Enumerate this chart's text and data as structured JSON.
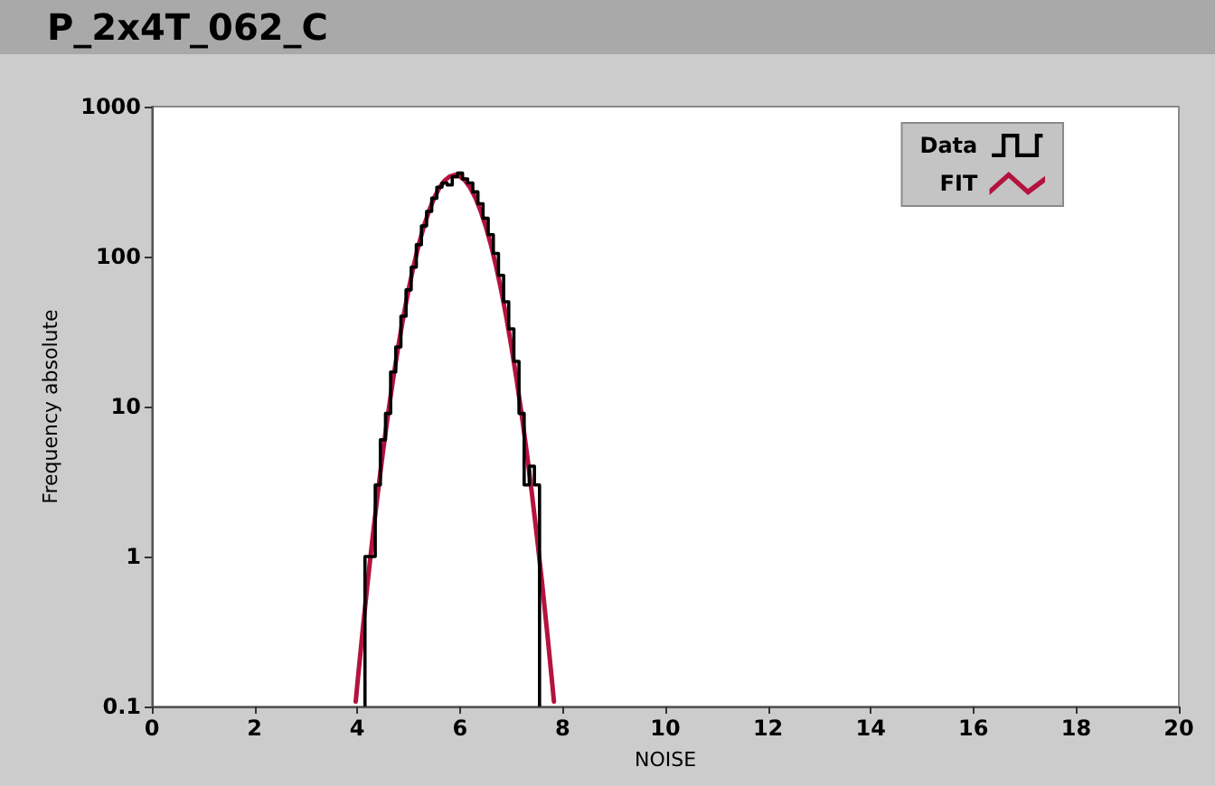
{
  "chart_data": {
    "type": "histogram",
    "title": "P_2x4T_062_C",
    "xlabel": "NOISE",
    "ylabel": "Frequency absolute",
    "xlim": [
      0,
      20
    ],
    "xticks": [
      0,
      2,
      4,
      6,
      8,
      10,
      12,
      14,
      16,
      18,
      20
    ],
    "ylim": [
      0.1,
      1000
    ],
    "yticks": [
      0.1,
      1,
      10,
      100,
      1000
    ],
    "log": "y",
    "legend": "top right",
    "series": [
      {
        "name": "Data",
        "color": "#000000",
        "bins": [
          4.15,
          4.25,
          4.35,
          4.45,
          4.55,
          4.65,
          4.75,
          4.85,
          4.95,
          5.05,
          5.15,
          5.25,
          5.35,
          5.45,
          5.55,
          5.65,
          5.75,
          5.85,
          5.95,
          6.05,
          6.15,
          6.25,
          6.35,
          6.45,
          6.55,
          6.65,
          6.75,
          6.85,
          6.95,
          7.05,
          7.15,
          7.25,
          7.35,
          7.45,
          7.55
        ],
        "values": [
          1,
          1,
          3,
          6,
          9,
          17,
          25,
          40,
          60,
          85,
          120,
          160,
          200,
          245,
          290,
          310,
          300,
          340,
          360,
          330,
          310,
          270,
          225,
          180,
          140,
          105,
          75,
          50,
          33,
          20,
          9,
          3,
          4,
          3
        ]
      },
      {
        "name": "FIT",
        "type": "line",
        "color": "#b5123e",
        "x": [
          3.97,
          4.0,
          4.1,
          4.2,
          4.3,
          4.4,
          4.5,
          4.6,
          4.7,
          4.8,
          4.9,
          5.0,
          5.1,
          5.2,
          5.3,
          5.4,
          5.5,
          5.6,
          5.7,
          5.8,
          5.9,
          6.0,
          6.1,
          6.2,
          6.3,
          6.4,
          6.5,
          6.6,
          6.7,
          6.8,
          6.9,
          7.0,
          7.1,
          7.2,
          7.3,
          7.4,
          7.5,
          7.6,
          7.7,
          7.8,
          7.83
        ],
        "values": [
          0.108,
          0.139,
          0.309,
          0.661,
          1.35,
          2.65,
          4.98,
          8.94,
          15.4,
          25.3,
          40,
          60.3,
          87.3,
          121,
          160,
          203,
          247,
          288,
          321,
          342,
          350,
          342,
          321,
          288,
          247,
          203,
          160,
          121,
          87.3,
          60.3,
          40,
          25.3,
          15.4,
          8.94,
          4.98,
          2.65,
          1.35,
          0.661,
          0.309,
          0.139,
          0.108
        ]
      }
    ]
  }
}
